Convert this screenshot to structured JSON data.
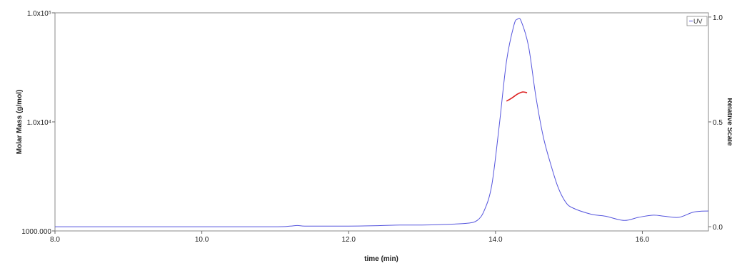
{
  "chart_data": {
    "type": "line",
    "xlabel": "time (min)",
    "ylabel": "Molar Mass (g/mol)",
    "y2label": "Relative Scale",
    "xlim": [
      8.0,
      16.9
    ],
    "ylim": [
      1000,
      100000
    ],
    "y_scale": "log",
    "y2lim": [
      -0.02,
      1.02
    ],
    "x_ticks": [
      "8.0",
      "10.0",
      "12.0",
      "14.0",
      "16.0"
    ],
    "x_tick_values": [
      8,
      10,
      12,
      14,
      16
    ],
    "y_ticks": [
      "1000.000",
      "1.0x10⁴",
      "1.0x10⁵"
    ],
    "y_tick_values": [
      1000,
      10000,
      100000
    ],
    "y2_ticks": [
      "0.0",
      "0.5",
      "1.0"
    ],
    "y2_tick_values": [
      0,
      0.5,
      1.0
    ],
    "legend": {
      "label": "UV",
      "placement": "top-right"
    },
    "grid": false,
    "series": [
      {
        "name": "UV",
        "axis": "right",
        "color": "#5555dd",
        "x": [
          8.0,
          9.0,
          10.0,
          11.0,
          11.2,
          11.3,
          11.4,
          11.6,
          12.0,
          12.4,
          12.7,
          13.0,
          13.3,
          13.6,
          13.75,
          13.85,
          13.95,
          14.05,
          14.15,
          14.25,
          14.3,
          14.35,
          14.45,
          14.55,
          14.65,
          14.75,
          14.85,
          14.95,
          15.05,
          15.3,
          15.5,
          15.75,
          15.95,
          16.15,
          16.3,
          16.5,
          16.7,
          16.9
        ],
        "y": [
          0.0,
          0.0,
          0.0,
          0.0,
          0.003,
          0.006,
          0.003,
          0.003,
          0.003,
          0.005,
          0.008,
          0.008,
          0.011,
          0.016,
          0.03,
          0.08,
          0.2,
          0.48,
          0.79,
          0.96,
          0.99,
          0.98,
          0.86,
          0.62,
          0.43,
          0.3,
          0.19,
          0.12,
          0.09,
          0.06,
          0.05,
          0.03,
          0.045,
          0.055,
          0.05,
          0.045,
          0.07,
          0.075
        ]
      },
      {
        "name": "Molar Mass",
        "axis": "left",
        "color": "#dd2222",
        "x": [
          14.15,
          14.22,
          14.3,
          14.37,
          14.43
        ],
        "y": [
          15500,
          16500,
          18000,
          18800,
          18500
        ]
      }
    ]
  }
}
